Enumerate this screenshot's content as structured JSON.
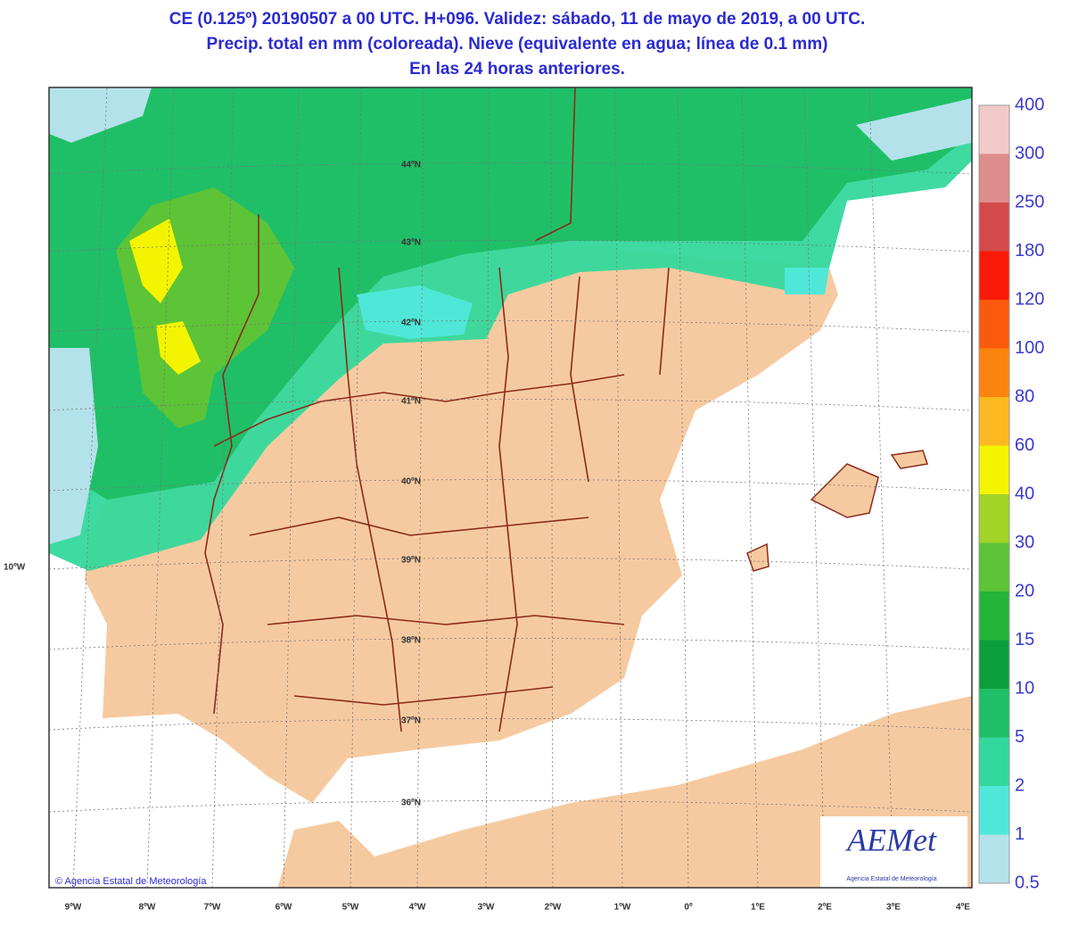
{
  "header": {
    "lines": [
      "CE (0.125º) 20190507 a 00 UTC.  H+096. Validez: sábado,  11 de mayo de 2019,  a  00 UTC.",
      "Precip. total en mm (coloreada). Nieve (equivalente en agua; línea de 0.1 mm)",
      "En las 24 horas anteriores."
    ]
  },
  "map": {
    "latitude_labels": [
      "44ºN",
      "43ºN",
      "42ºN",
      "41ºN",
      "40ºN",
      "39ºN",
      "38ºN",
      "37ºN",
      "36ºN"
    ],
    "longitude_labels": [
      "9ºW",
      "8ºW",
      "7ºW",
      "6ºW",
      "5ºW",
      "4ºW",
      "3ºW",
      "2ºW",
      "1ºW",
      "0º",
      "1ºE",
      "2ºE",
      "3ºE",
      "4ºE"
    ],
    "west_label": "10ºW"
  },
  "legend": {
    "levels": [
      0.5,
      1,
      2,
      5,
      10,
      15,
      20,
      30,
      40,
      60,
      80,
      100,
      120,
      180,
      250,
      300,
      400
    ],
    "colors": [
      "#b4e2ea",
      "#4fe8d8",
      "#34d89c",
      "#1fbf68",
      "#0c9e3c",
      "#24b43a",
      "#5cc436",
      "#a0d428",
      "#f4f400",
      "#fbb820",
      "#fb8410",
      "#fb5a0c",
      "#fb1a0a",
      "#d44a4a",
      "#de8c8c",
      "#f2caca"
    ]
  },
  "credit": "© Agencia Estatal de Meteorología",
  "logo": {
    "name": "AEMet",
    "subtitle": "Agencia Estatal de Meteorología"
  }
}
